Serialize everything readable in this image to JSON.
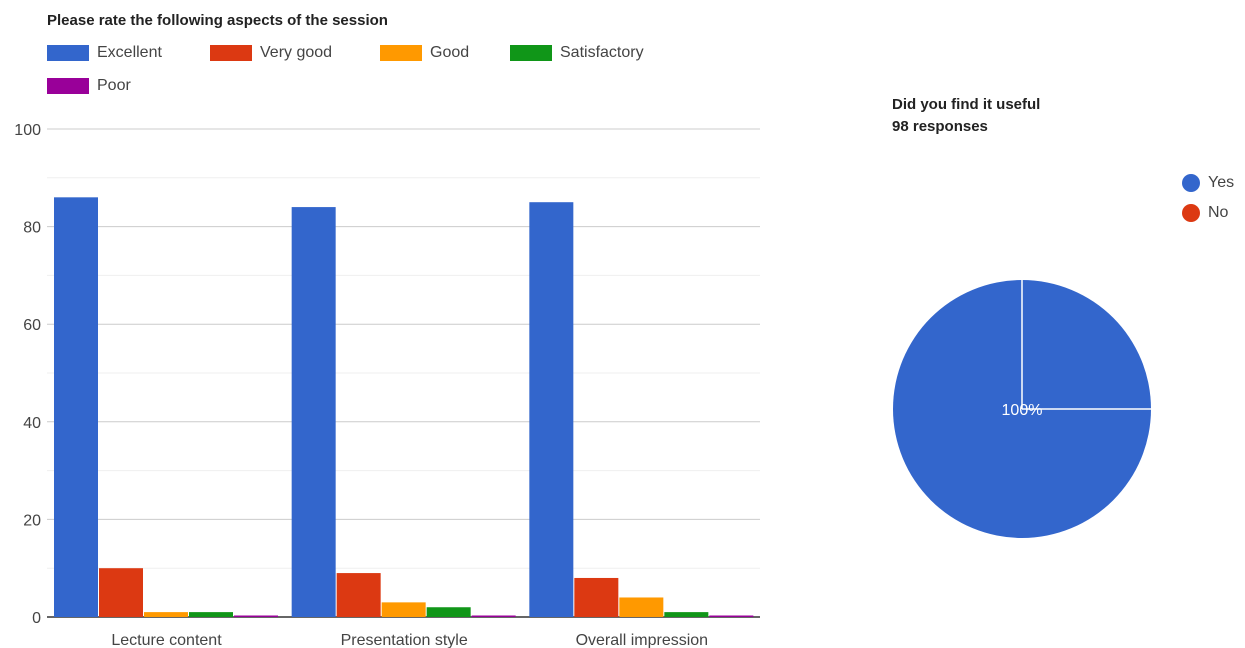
{
  "chart_data": [
    {
      "type": "bar",
      "title": "Please rate the following aspects of the session",
      "categories": [
        "Lecture content",
        "Presentation style",
        "Overall impression"
      ],
      "series": [
        {
          "name": "Excellent",
          "color": "#3366cc",
          "values": [
            86,
            84,
            85
          ]
        },
        {
          "name": "Very good",
          "color": "#dc3912",
          "values": [
            10,
            9,
            8
          ]
        },
        {
          "name": "Good",
          "color": "#ff9900",
          "values": [
            1,
            3,
            4
          ]
        },
        {
          "name": "Satisfactory",
          "color": "#109618",
          "values": [
            1,
            2,
            1
          ]
        },
        {
          "name": "Poor",
          "color": "#990099",
          "values": [
            0,
            0,
            0
          ]
        }
      ],
      "yticks": [
        0,
        20,
        40,
        60,
        80,
        100
      ],
      "ylim": [
        0,
        100
      ],
      "grid": true,
      "legend_position": "top"
    },
    {
      "type": "pie",
      "title": "Did you find it useful",
      "subtitle": "98 responses",
      "slices": [
        {
          "label": "Yes",
          "color": "#3366cc",
          "value": 100
        },
        {
          "label": "No",
          "color": "#dc3912",
          "value": 0
        }
      ],
      "slice_label": "100%",
      "legend_position": "right"
    }
  ]
}
